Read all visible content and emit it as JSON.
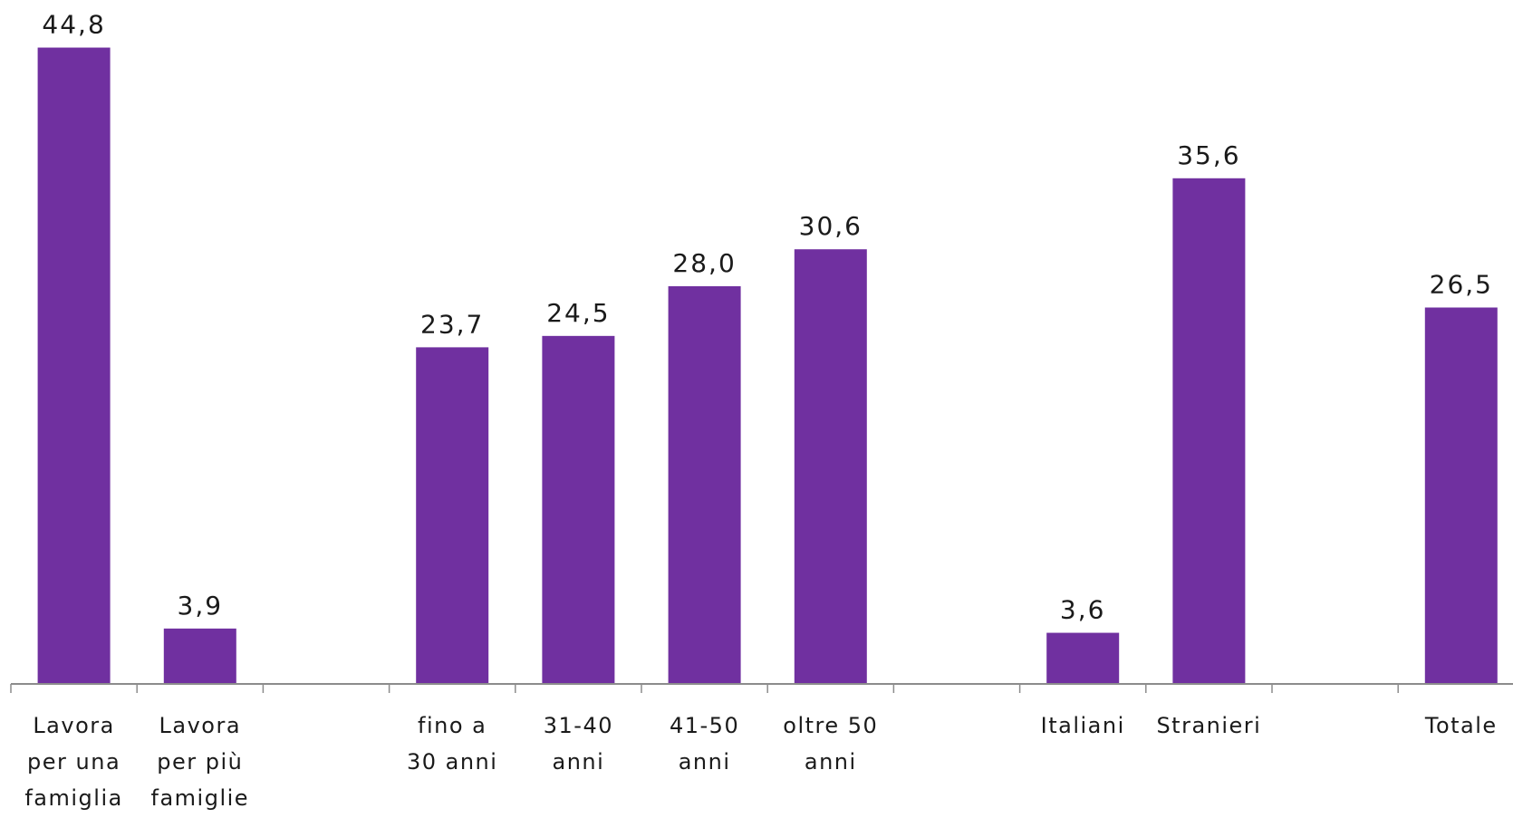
{
  "chart_data": {
    "type": "bar",
    "title": "",
    "xlabel": "",
    "ylabel": "",
    "ylim": [
      0,
      45
    ],
    "grid": false,
    "legend": "none",
    "colors": {
      "bar": "#7030a0",
      "title": "#31849b",
      "axis": "#8c8c8c"
    },
    "categories": [
      {
        "lines": [
          "Lavora",
          "per una",
          "famiglia"
        ]
      },
      {
        "lines": [
          "Lavora",
          "per più",
          "famiglie"
        ]
      },
      {
        "lines": []
      },
      {
        "lines": [
          "fino a",
          "30 anni"
        ]
      },
      {
        "lines": [
          "31-40",
          "anni"
        ]
      },
      {
        "lines": [
          "41-50",
          "anni"
        ]
      },
      {
        "lines": [
          "oltre 50",
          "anni"
        ]
      },
      {
        "lines": []
      },
      {
        "lines": [
          "Italiani"
        ]
      },
      {
        "lines": [
          "Stranieri"
        ]
      },
      {
        "lines": []
      },
      {
        "lines": [
          "Totale"
        ]
      }
    ],
    "values": [
      44.8,
      3.9,
      null,
      23.7,
      24.5,
      28.0,
      30.6,
      null,
      3.6,
      35.6,
      null,
      26.5
    ],
    "value_labels": [
      "44,8",
      "3,9",
      "",
      "23,7",
      "24,5",
      "28,0",
      "30,6",
      "",
      "3,6",
      "35,6",
      "",
      "26,5"
    ]
  }
}
